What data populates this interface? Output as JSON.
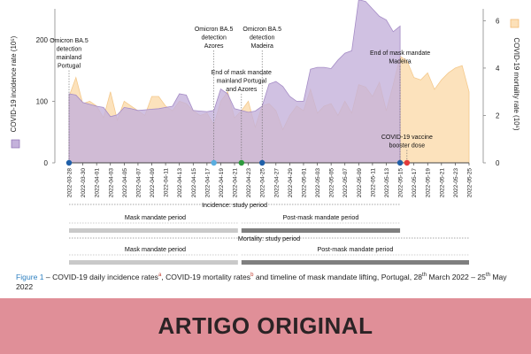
{
  "chart_data": {
    "type": "area",
    "x": [
      "2022-03-28",
      "2022-03-29",
      "2022-03-30",
      "2022-03-31",
      "2022-04-01",
      "2022-04-02",
      "2022-04-03",
      "2022-04-04",
      "2022-04-05",
      "2022-04-06",
      "2022-04-07",
      "2022-04-08",
      "2022-04-09",
      "2022-04-10",
      "2022-04-11",
      "2022-04-12",
      "2022-04-13",
      "2022-04-14",
      "2022-04-15",
      "2022-04-16",
      "2022-04-17",
      "2022-04-18",
      "2022-04-19",
      "2022-04-20",
      "2022-04-21",
      "2022-04-22",
      "2022-04-23",
      "2022-04-24",
      "2022-04-25",
      "2022-04-26",
      "2022-04-27",
      "2022-04-28",
      "2022-04-29",
      "2022-04-30",
      "2022-05-01",
      "2022-05-02",
      "2022-05-03",
      "2022-05-04",
      "2022-05-05",
      "2022-05-06",
      "2022-05-07",
      "2022-05-08",
      "2022-05-09",
      "2022-05-10",
      "2022-05-11",
      "2022-05-12",
      "2022-05-13",
      "2022-05-14",
      "2022-05-15",
      "2022-05-16",
      "2022-05-17",
      "2022-05-18",
      "2022-05-19",
      "2022-05-20",
      "2022-05-21",
      "2022-05-22",
      "2022-05-23",
      "2022-05-24",
      "2022-05-25"
    ],
    "xticks": [
      "2022-03-28",
      "2022-03-30",
      "2022-04-01",
      "2022-04-03",
      "2022-04-05",
      "2022-04-07",
      "2022-04-09",
      "2022-04-11",
      "2022-04-13",
      "2022-04-15",
      "2022-04-17",
      "2022-04-19",
      "2022-04-21",
      "2022-04-23",
      "2022-04-25",
      "2022-04-27",
      "2022-04-29",
      "2022-05-01",
      "2022-05-03",
      "2022-05-05",
      "2022-05-07",
      "2022-05-09",
      "2022-05-11",
      "2022-05-13",
      "2022-05-15",
      "2022-05-17",
      "2022-05-19",
      "2022-05-21",
      "2022-05-23",
      "2022-05-25"
    ],
    "ylabel": "COVID-19 incidence rate (10⁵)",
    "y2label": "COVID-19 mortality rate (10⁶)",
    "ylim": [
      0,
      250
    ],
    "y2lim": [
      0,
      6.5
    ],
    "yticks": [
      0,
      100,
      200
    ],
    "y2ticks": [
      0,
      2,
      4,
      6
    ],
    "grid": false,
    "series": [
      {
        "name": "COVID-19 incidence rate (10⁵)",
        "axis": "left",
        "color": "#c4b2db",
        "values": [
          112,
          110,
          98,
          95,
          92,
          90,
          75,
          78,
          90,
          88,
          85,
          86,
          87,
          88,
          90,
          92,
          112,
          110,
          85,
          84,
          83,
          85,
          120,
          112,
          88,
          85,
          82,
          84,
          92,
          128,
          132,
          124,
          108,
          100,
          100,
          152,
          155,
          155,
          153,
          167,
          178,
          182,
          265,
          262,
          250,
          238,
          232,
          213,
          222,
          null,
          null,
          null,
          null,
          null,
          null,
          null,
          null,
          null,
          null
        ]
      },
      {
        "name": "COVID-19 mortality rate (10⁶)",
        "axis": "right",
        "color": "#fce0b8",
        "values": [
          2.8,
          3.6,
          2.5,
          2.6,
          2.4,
          1.9,
          3.0,
          1.8,
          2.6,
          2.4,
          2.2,
          2.0,
          2.8,
          2.8,
          2.4,
          2.2,
          2.6,
          2.5,
          2.2,
          2.0,
          2.1,
          1.6,
          2.6,
          3.0,
          1.9,
          2.2,
          2.6,
          1.5,
          2.4,
          2.5,
          2.2,
          1.4,
          2.0,
          2.4,
          2.2,
          3.1,
          2.1,
          2.4,
          2.5,
          2.0,
          2.6,
          2.1,
          3.3,
          3.2,
          2.8,
          3.4,
          2.2,
          3.3,
          4.5,
          4.3,
          3.6,
          3.5,
          3.8,
          3.1,
          3.5,
          3.8,
          4.0,
          4.1,
          3.0
        ]
      }
    ],
    "events": [
      {
        "date": "2022-03-28",
        "color": "#1f5fa8",
        "lines": [
          "Omicron BA.5",
          "detection",
          "mainland",
          "Portugal"
        ]
      },
      {
        "date": "2022-04-18",
        "color": "#5aaee0",
        "lines": [
          "Omicron BA.5",
          "detection",
          "Azores"
        ]
      },
      {
        "date": "2022-04-22",
        "color": "#2e9a3e",
        "lines": [
          "End of mask mandate",
          "mainland Portugal",
          "and Azores"
        ]
      },
      {
        "date": "2022-04-25",
        "color": "#1f5fa8",
        "lines": [
          "Omicron BA.5",
          "detection",
          "Madeira"
        ]
      },
      {
        "date": "2022-05-15",
        "color": "#1f5fa8",
        "lines": [
          "End of mask mandate",
          "Madeira"
        ]
      },
      {
        "date": "2022-05-16",
        "color": "#e23b3b",
        "lines": [
          "COVID-19 vaccine",
          "booster dose"
        ]
      }
    ],
    "periods": [
      {
        "label": "Incidence: study period",
        "start": "2022-03-28",
        "end": "2022-05-15"
      },
      {
        "label": "Mask mandate period",
        "start": "2022-03-28",
        "end": "2022-04-22"
      },
      {
        "label": "Post-mask mandate period",
        "start": "2022-04-22",
        "end": "2022-05-15"
      },
      {
        "label": "Mortality: study period",
        "start": "2022-03-28",
        "end": "2022-05-25"
      },
      {
        "label": "Mask mandate period",
        "start": "2022-03-28",
        "end": "2022-04-22"
      },
      {
        "label": "Post-mask mandate period",
        "start": "2022-04-22",
        "end": "2022-05-25"
      }
    ]
  },
  "caption": {
    "fig_label": "Figure 1",
    "part1": " – COVID-19 daily incidence rates",
    "mark_a": "a",
    "part2": ", COVID-19 mortality rates",
    "mark_b": "b",
    "part3": " and timeline of mask mandate lifting, Portugal, 28",
    "sup1": "th",
    "part4": " March 2022 – 25",
    "sup2": "th",
    "part5": " May 2022"
  },
  "banner": {
    "title": "ARTIGO ORIGINAL"
  }
}
